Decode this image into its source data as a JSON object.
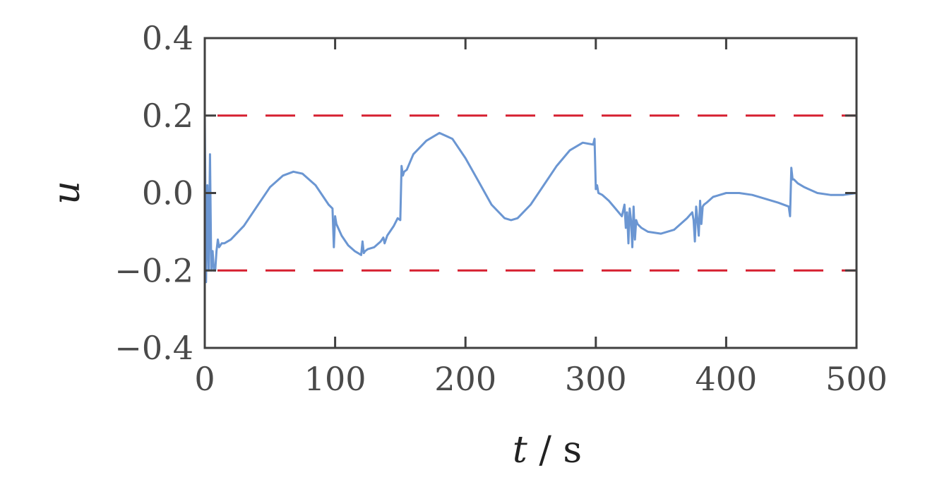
{
  "chart_data": {
    "type": "line",
    "title": "",
    "xlabel_var": "t",
    "xlabel_unit": " / s",
    "ylabel": "u",
    "xlim": [
      0,
      500
    ],
    "ylim": [
      -0.4,
      0.4
    ],
    "xticks": [
      0,
      100,
      200,
      300,
      400,
      500
    ],
    "xtick_labels": [
      "0",
      "100",
      "200",
      "300",
      "400",
      "500"
    ],
    "yticks": [
      -0.4,
      -0.2,
      0.0,
      0.2,
      0.4
    ],
    "ytick_labels": [
      "−0.4",
      "−0.2",
      "0.0",
      "0.2",
      "0.4"
    ],
    "grid": false,
    "colors": {
      "signal": "#6b96d2",
      "limits": "#d62030",
      "axes": "#404040"
    },
    "limits": [
      0.2,
      -0.2
    ],
    "series": [
      {
        "x": [
          0,
          1,
          2,
          3,
          4,
          5,
          6,
          7,
          8,
          9,
          10,
          11,
          13,
          15,
          20,
          30,
          40,
          50,
          60,
          68,
          75,
          85,
          95,
          98,
          99,
          100,
          101,
          105,
          110,
          115,
          120,
          121,
          122,
          123,
          125,
          130,
          135,
          137,
          138,
          140,
          145,
          148,
          150,
          151,
          152,
          153,
          155,
          160,
          170,
          180,
          190,
          200,
          210,
          220,
          230,
          235,
          240,
          250,
          260,
          270,
          280,
          290,
          298,
          299,
          300,
          301,
          302,
          305,
          310,
          315,
          320,
          322,
          323,
          324,
          325,
          326,
          327,
          328,
          329,
          330,
          331,
          332,
          335,
          340,
          350,
          360,
          370,
          374,
          375,
          376,
          377,
          378,
          379,
          380,
          381,
          382,
          383,
          385,
          390,
          400,
          410,
          420,
          430,
          440,
          448,
          449,
          450,
          451,
          452,
          455,
          460,
          470,
          480,
          490,
          500
        ],
        "y": [
          0.2,
          -0.23,
          0.02,
          -0.2,
          0.1,
          -0.2,
          -0.15,
          -0.2,
          -0.2,
          -0.15,
          -0.12,
          -0.14,
          -0.13,
          -0.13,
          -0.12,
          -0.085,
          -0.035,
          0.015,
          0.045,
          0.055,
          0.05,
          0.02,
          -0.03,
          -0.04,
          -0.14,
          -0.06,
          -0.08,
          -0.11,
          -0.135,
          -0.15,
          -0.16,
          -0.125,
          -0.155,
          -0.15,
          -0.145,
          -0.14,
          -0.125,
          -0.115,
          -0.13,
          -0.11,
          -0.085,
          -0.065,
          -0.07,
          0.07,
          0.045,
          0.055,
          0.06,
          0.1,
          0.135,
          0.155,
          0.14,
          0.09,
          0.03,
          -0.03,
          -0.065,
          -0.07,
          -0.065,
          -0.03,
          0.02,
          0.07,
          0.11,
          0.13,
          0.125,
          0.14,
          0.01,
          0.02,
          0.0,
          -0.005,
          -0.02,
          -0.04,
          -0.06,
          -0.03,
          -0.09,
          -0.05,
          -0.13,
          -0.04,
          -0.07,
          -0.14,
          -0.035,
          -0.12,
          -0.07,
          -0.08,
          -0.09,
          -0.1,
          -0.105,
          -0.095,
          -0.065,
          -0.05,
          -0.07,
          -0.125,
          -0.035,
          -0.07,
          -0.11,
          -0.02,
          -0.08,
          -0.035,
          -0.03,
          -0.025,
          -0.01,
          0.0,
          0.0,
          -0.005,
          -0.015,
          -0.025,
          -0.035,
          -0.06,
          0.065,
          0.035,
          0.035,
          0.025,
          0.015,
          0.0,
          -0.005,
          -0.005,
          0.0
        ]
      }
    ]
  }
}
